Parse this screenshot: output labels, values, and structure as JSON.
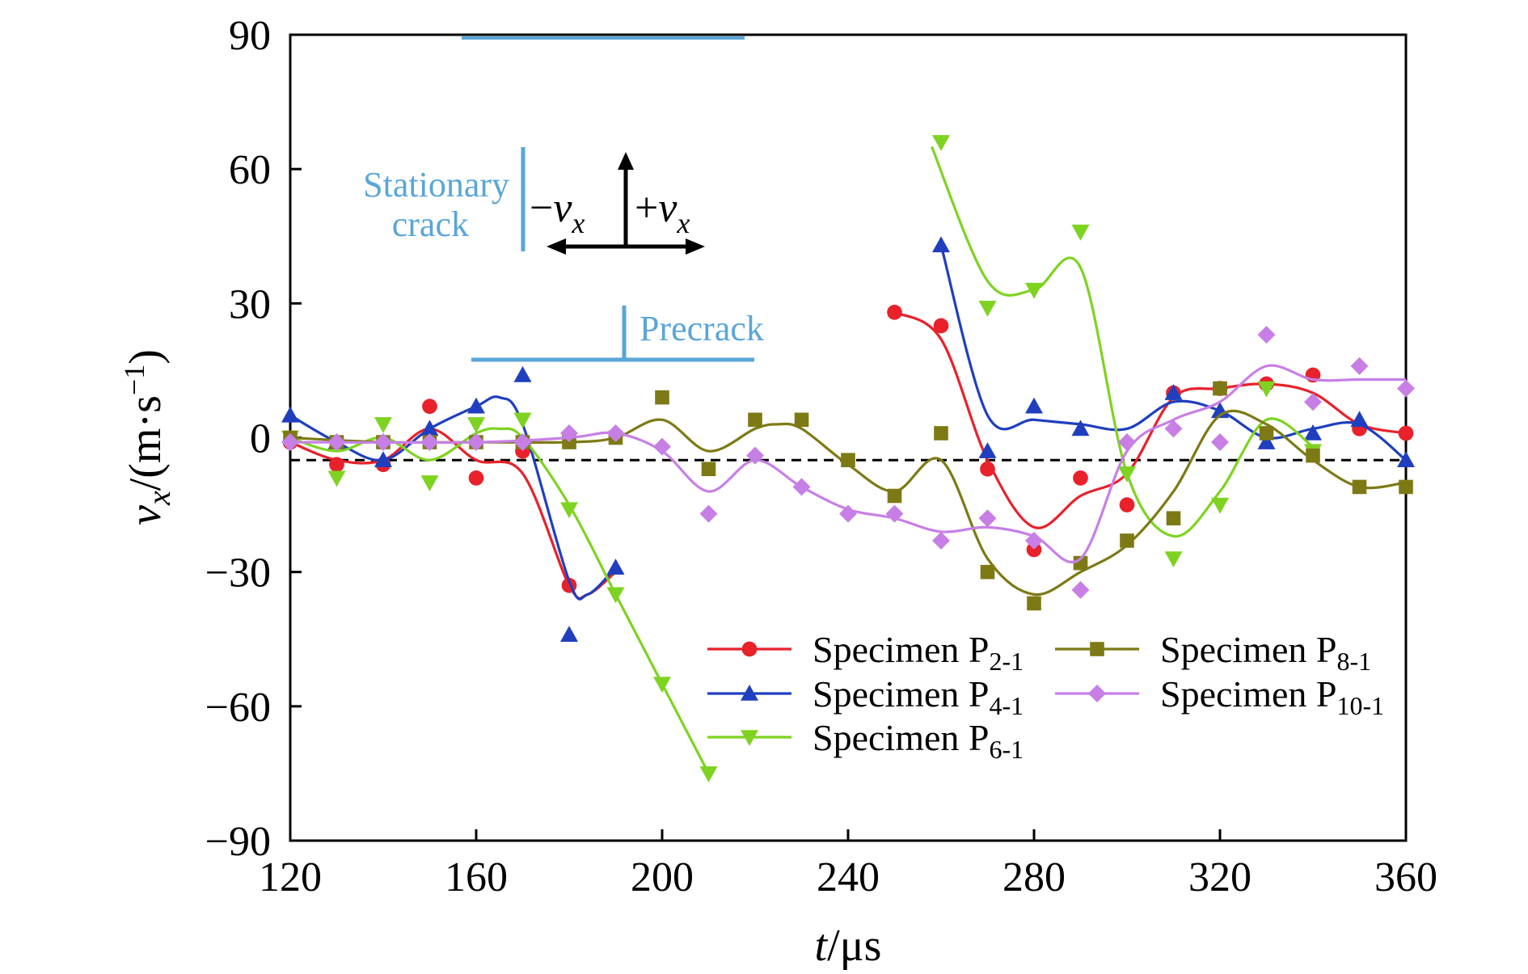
{
  "chart_data": {
    "type": "scatter",
    "xlabel_italic": "t",
    "xlabel_unit": "/μs",
    "ylabel_italic": "v",
    "ylabel_sub": "x",
    "ylabel_unit": "/(m·s",
    "ylabel_sup": "−1",
    "ylabel_close": ")",
    "xlim": [
      120,
      360
    ],
    "ylim": [
      -90,
      90
    ],
    "x_ticks": [
      120,
      160,
      200,
      240,
      280,
      320,
      360
    ],
    "y_ticks": [
      90,
      60,
      30,
      0,
      -30,
      -60,
      -90
    ],
    "y_tick_labels": [
      "90",
      "60",
      "30",
      "0",
      "−30",
      "−60",
      "−90"
    ],
    "reference_line": {
      "y": -5,
      "style": "dashed"
    },
    "series": [
      {
        "name": "Specimen P",
        "sub": "2-1",
        "color": "#e8212b",
        "marker": "circle",
        "points": [
          [
            120,
            -1
          ],
          [
            130,
            -6
          ],
          [
            140,
            -6
          ],
          [
            150,
            7
          ],
          [
            160,
            -9
          ],
          [
            170,
            -3
          ],
          [
            180,
            -33
          ],
          [
            250,
            28
          ],
          [
            260,
            25
          ],
          [
            270,
            -7
          ],
          [
            280,
            -25
          ],
          [
            290,
            -9
          ],
          [
            300,
            -15
          ],
          [
            310,
            10
          ],
          [
            320,
            11
          ],
          [
            330,
            12
          ],
          [
            340,
            14
          ],
          [
            350,
            2
          ],
          [
            360,
            1
          ]
        ],
        "curve": [
          [
            120,
            -1
          ],
          [
            130,
            -5
          ],
          [
            140,
            -5
          ],
          [
            150,
            2
          ],
          [
            160,
            -5
          ],
          [
            170,
            -8
          ],
          [
            180,
            -33
          ],
          [
            184,
            -35
          ],
          [
            190,
            -30
          ]
        ],
        "curve2": [
          [
            250,
            28
          ],
          [
            260,
            22
          ],
          [
            270,
            -5
          ],
          [
            280,
            -20
          ],
          [
            290,
            -13
          ],
          [
            300,
            -8
          ],
          [
            310,
            9
          ],
          [
            320,
            11
          ],
          [
            330,
            12
          ],
          [
            340,
            10
          ],
          [
            350,
            3
          ],
          [
            360,
            1
          ]
        ]
      },
      {
        "name": "Specimen P",
        "sub": "4-1",
        "color": "#1f3fbf",
        "marker": "triangle-up",
        "points": [
          [
            120,
            5
          ],
          [
            130,
            -1
          ],
          [
            140,
            -5
          ],
          [
            150,
            2
          ],
          [
            160,
            7
          ],
          [
            170,
            14
          ],
          [
            180,
            -44
          ],
          [
            190,
            -29
          ],
          [
            260,
            43
          ],
          [
            270,
            -3
          ],
          [
            280,
            7
          ],
          [
            290,
            2
          ],
          [
            310,
            10
          ],
          [
            320,
            6
          ],
          [
            330,
            -1
          ],
          [
            340,
            1
          ],
          [
            350,
            4
          ],
          [
            360,
            -5
          ]
        ],
        "curve": [
          [
            120,
            5
          ],
          [
            130,
            -1
          ],
          [
            140,
            -5
          ],
          [
            150,
            2
          ],
          [
            160,
            7
          ],
          [
            165,
            9
          ],
          [
            170,
            3
          ],
          [
            180,
            -32
          ],
          [
            184,
            -35
          ],
          [
            190,
            -29
          ]
        ],
        "curve2": [
          [
            260,
            43
          ],
          [
            270,
            5
          ],
          [
            280,
            4
          ],
          [
            290,
            3
          ],
          [
            300,
            2
          ],
          [
            310,
            8
          ],
          [
            320,
            6
          ],
          [
            330,
            0
          ],
          [
            340,
            2
          ],
          [
            350,
            3
          ],
          [
            360,
            -5
          ]
        ]
      },
      {
        "name": "Specimen P",
        "sub": "6-1",
        "color": "#7ed321",
        "marker": "triangle-down",
        "points": [
          [
            120,
            0
          ],
          [
            130,
            -9
          ],
          [
            140,
            3
          ],
          [
            150,
            -10
          ],
          [
            160,
            3
          ],
          [
            170,
            4
          ],
          [
            180,
            -16
          ],
          [
            190,
            -35
          ],
          [
            200,
            -55
          ],
          [
            210,
            -75
          ],
          [
            260,
            66
          ],
          [
            270,
            29
          ],
          [
            280,
            33
          ],
          [
            290,
            46
          ],
          [
            300,
            -8
          ],
          [
            310,
            -27
          ],
          [
            320,
            -15
          ],
          [
            330,
            11
          ],
          [
            340,
            -3
          ]
        ],
        "curve": [
          [
            120,
            0
          ],
          [
            130,
            -3
          ],
          [
            140,
            0
          ],
          [
            150,
            -5
          ],
          [
            160,
            1
          ],
          [
            165,
            2
          ],
          [
            170,
            0
          ],
          [
            180,
            -15
          ],
          [
            190,
            -35
          ],
          [
            200,
            -55
          ],
          [
            210,
            -75
          ]
        ],
        "curve2": [
          [
            258,
            65
          ],
          [
            270,
            35
          ],
          [
            280,
            33
          ],
          [
            290,
            38
          ],
          [
            300,
            -8
          ],
          [
            310,
            -22
          ],
          [
            320,
            -12
          ],
          [
            330,
            4
          ],
          [
            340,
            -2
          ]
        ]
      },
      {
        "name": "Specimen P",
        "sub": "8-1",
        "color": "#7d7a15",
        "marker": "square",
        "points": [
          [
            120,
            0
          ],
          [
            130,
            -1
          ],
          [
            140,
            -1
          ],
          [
            150,
            -1
          ],
          [
            160,
            -1
          ],
          [
            170,
            -1
          ],
          [
            180,
            -1
          ],
          [
            190,
            0
          ],
          [
            200,
            9
          ],
          [
            210,
            -7
          ],
          [
            220,
            4
          ],
          [
            230,
            4
          ],
          [
            240,
            -5
          ],
          [
            250,
            -13
          ],
          [
            260,
            1
          ],
          [
            270,
            -30
          ],
          [
            280,
            -37
          ],
          [
            290,
            -28
          ],
          [
            300,
            -23
          ],
          [
            310,
            -18
          ],
          [
            320,
            11
          ],
          [
            330,
            1
          ],
          [
            340,
            -4
          ],
          [
            350,
            -11
          ],
          [
            360,
            -11
          ]
        ],
        "curve": [
          [
            120,
            0
          ],
          [
            140,
            -1
          ],
          [
            160,
            -1
          ],
          [
            180,
            -1
          ],
          [
            190,
            0
          ],
          [
            200,
            4
          ],
          [
            210,
            -3
          ],
          [
            220,
            2
          ],
          [
            225,
            3
          ],
          [
            230,
            2
          ],
          [
            240,
            -6
          ],
          [
            250,
            -12
          ],
          [
            260,
            -5
          ],
          [
            270,
            -27
          ],
          [
            280,
            -35
          ],
          [
            290,
            -30
          ],
          [
            300,
            -24
          ],
          [
            310,
            -12
          ],
          [
            320,
            5
          ],
          [
            330,
            3
          ],
          [
            340,
            -5
          ],
          [
            350,
            -11
          ],
          [
            360,
            -10
          ]
        ]
      },
      {
        "name": "Specimen P",
        "sub": "10-1",
        "color": "#c77fe6",
        "marker": "diamond",
        "points": [
          [
            120,
            -1
          ],
          [
            130,
            -1
          ],
          [
            140,
            -1
          ],
          [
            150,
            -1
          ],
          [
            160,
            -1
          ],
          [
            170,
            -1
          ],
          [
            180,
            1
          ],
          [
            190,
            1
          ],
          [
            200,
            -2
          ],
          [
            210,
            -17
          ],
          [
            220,
            -4
          ],
          [
            230,
            -11
          ],
          [
            240,
            -17
          ],
          [
            250,
            -17
          ],
          [
            260,
            -23
          ],
          [
            270,
            -18
          ],
          [
            280,
            -23
          ],
          [
            290,
            -34
          ],
          [
            300,
            -1
          ],
          [
            310,
            2
          ],
          [
            320,
            -1
          ],
          [
            330,
            23
          ],
          [
            340,
            8
          ],
          [
            350,
            16
          ],
          [
            360,
            11
          ]
        ],
        "curve": [
          [
            120,
            -1
          ],
          [
            160,
            -1
          ],
          [
            180,
            0
          ],
          [
            190,
            1
          ],
          [
            200,
            -3
          ],
          [
            210,
            -12
          ],
          [
            220,
            -5
          ],
          [
            230,
            -11
          ],
          [
            240,
            -16
          ],
          [
            250,
            -18
          ],
          [
            260,
            -21
          ],
          [
            270,
            -20
          ],
          [
            280,
            -22
          ],
          [
            290,
            -27
          ],
          [
            300,
            -3
          ],
          [
            310,
            4
          ],
          [
            320,
            8
          ],
          [
            330,
            16
          ],
          [
            340,
            13
          ],
          [
            350,
            13
          ],
          [
            360,
            13
          ]
        ]
      }
    ],
    "annotations": {
      "stationary_crack_line1": "Stationary",
      "stationary_crack_line2": "crack",
      "precrack": "Precrack",
      "minus_vx_sign": "−",
      "plus_vx_sign": "+",
      "vx_italic": "v",
      "vx_sub": "x",
      "color": "#5aa6d8"
    },
    "legend_placement": "bottom-right"
  }
}
